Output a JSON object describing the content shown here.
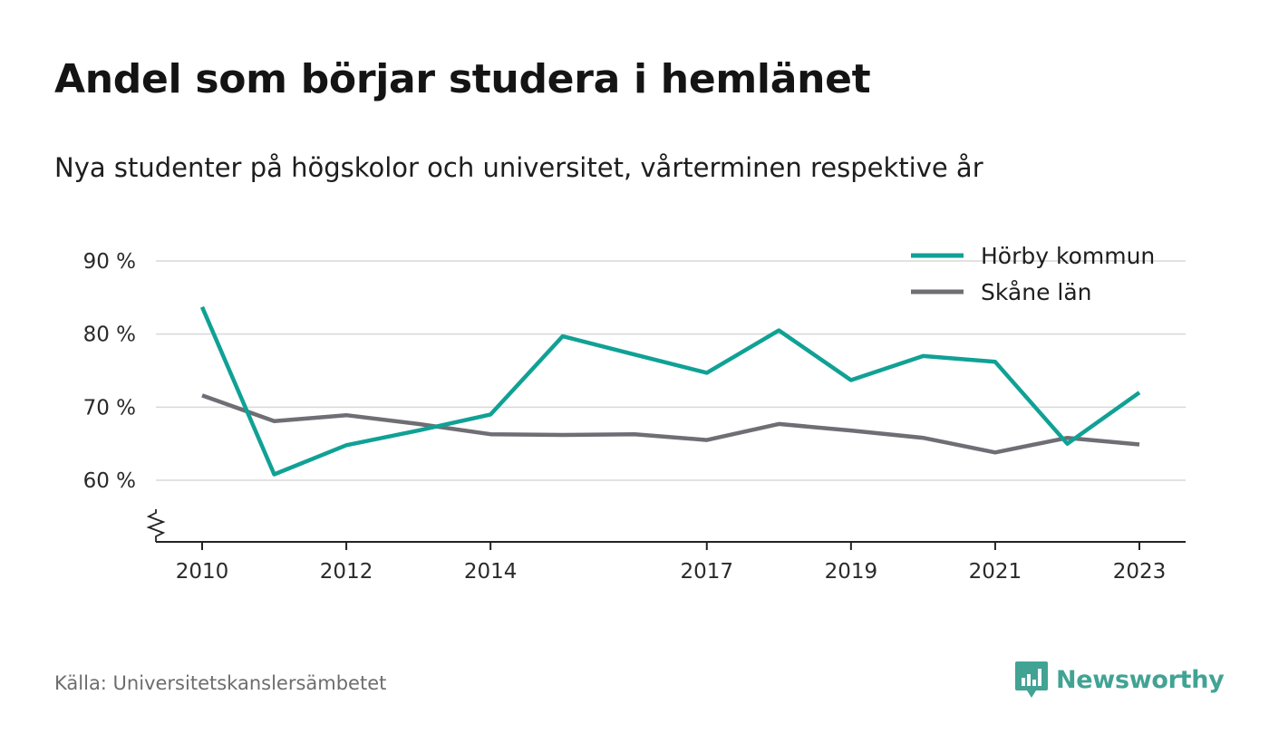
{
  "title": "Andel som börjar studera i hemlänet",
  "subtitle": "Nya studenter på högskolor och universitet, vårterminen respektive år",
  "source": "Källa: Universitetskanslersämbetet",
  "brand": {
    "name": "Newsworthy",
    "icon": "newsworthy-logo-icon",
    "color": "#41a394"
  },
  "chart_data": {
    "type": "line",
    "x": [
      2010,
      2011,
      2012,
      2013,
      2014,
      2015,
      2016,
      2017,
      2018,
      2019,
      2020,
      2021,
      2022,
      2023
    ],
    "x_tick_labels": [
      "2010",
      "2012",
      "2014",
      "2017",
      "2019",
      "2021",
      "2023"
    ],
    "y_tick_values": [
      60,
      70,
      80,
      90
    ],
    "y_tick_labels": [
      "60 %",
      "70 %",
      "80 %",
      "90 %"
    ],
    "ylim": [
      52,
      92
    ],
    "y_axis_break": true,
    "grid": true,
    "legend_position": "top-right",
    "series": [
      {
        "name": "Hörby kommun",
        "color": "#10a195",
        "values": [
          83.7,
          60.8,
          64.8,
          66.8,
          69.0,
          79.7,
          77.2,
          74.7,
          80.5,
          73.7,
          77.0,
          76.2,
          65.0,
          72.0
        ]
      },
      {
        "name": "Skåne län",
        "color": "#6f6e75",
        "values": [
          71.6,
          68.1,
          68.9,
          67.7,
          66.3,
          66.2,
          66.3,
          65.5,
          67.7,
          66.8,
          65.8,
          63.8,
          65.8,
          64.9
        ]
      }
    ]
  }
}
